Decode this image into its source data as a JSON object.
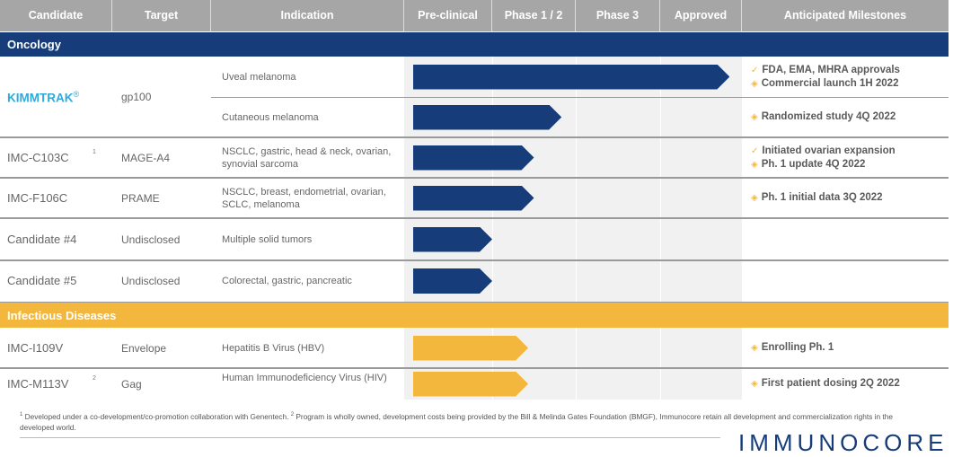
{
  "header": {
    "candidate": "Candidate",
    "target": "Target",
    "indication": "Indication",
    "preclinical": "Pre-clinical",
    "phase12": "Phase 1 / 2",
    "phase3": "Phase 3",
    "approved": "Approved",
    "milestones": "Anticipated Milestones"
  },
  "sections": {
    "oncology": "Oncology",
    "infectious": "Infectious Diseases"
  },
  "colors": {
    "oncology": "#163d7a",
    "infectious": "#f2b73c",
    "kimmtrak": "#2eaadc",
    "header": "#a6a6a6"
  },
  "rows": [
    {
      "candidate": "KIMMTRAK",
      "reg": "®",
      "target": "gp100",
      "indications": [
        {
          "text": "Uveal melanoma",
          "progress_phases": 3.85,
          "milestones": [
            {
              "icon": "check-icon",
              "symbol": "✓",
              "text": "FDA, EMA, MHRA approvals"
            },
            {
              "icon": "diamond-icon",
              "symbol": "◈",
              "text": "Commercial launch 1H 2022"
            }
          ]
        },
        {
          "text": "Cutaneous melanoma",
          "progress_phases": 1.83,
          "milestones": [
            {
              "icon": "diamond-icon",
              "symbol": "◈",
              "text": "Randomized study 4Q 2022"
            }
          ]
        }
      ]
    },
    {
      "candidate": "IMC-C103C",
      "footnote": "1",
      "target": "MAGE-A4",
      "indication": "NSCLC, gastric, head & neck, ovarian, synovial sarcoma",
      "progress_phases": 1.5,
      "milestones": [
        {
          "icon": "check-icon",
          "symbol": "✓",
          "text": "Initiated ovarian expansion"
        },
        {
          "icon": "diamond-icon",
          "symbol": "◈",
          "text": "Ph. 1 update 4Q 2022"
        }
      ]
    },
    {
      "candidate": "IMC-F106C",
      "target": "PRAME",
      "indication": "NSCLC, breast, endometrial, ovarian, SCLC, melanoma",
      "progress_phases": 1.5,
      "milestones": [
        {
          "icon": "diamond-icon",
          "symbol": "◈",
          "text": "Ph. 1 initial data 3Q 2022"
        }
      ]
    },
    {
      "candidate": "Candidate #4",
      "target": "Undisclosed",
      "indication": "Multiple solid tumors",
      "progress_phases": 1.0
    },
    {
      "candidate": "Candidate #5",
      "target": "Undisclosed",
      "indication": "Colorectal, gastric, pancreatic",
      "progress_phases": 1.0
    },
    {
      "candidate": "IMC-I109V",
      "target": "Envelope",
      "indication": "Hepatitis B Virus (HBV)",
      "progress_phases": 1.43,
      "milestones": [
        {
          "icon": "diamond-icon",
          "symbol": "◈",
          "text": "Enrolling Ph. 1"
        }
      ]
    },
    {
      "candidate": "IMC-M113V",
      "footnote": "2",
      "target": "Gag",
      "indication": "Human Immunodeficiency Virus (HIV)",
      "progress_phases": 1.43,
      "milestones": [
        {
          "icon": "diamond-icon",
          "symbol": "◈",
          "text": "First patient dosing 2Q 2022"
        }
      ]
    }
  ],
  "footnotes": {
    "n1": "1",
    "t1": " Developed under a co-development/co-promotion collaboration with Genentech. ",
    "n2": "2",
    "t2": " Program is wholly owned, development costs being provided by the Bill & Melinda Gates Foundation (BMGF), Immunocore retain all development and commercialization rights in the developed world."
  },
  "logo": "IMMUNOCORE"
}
